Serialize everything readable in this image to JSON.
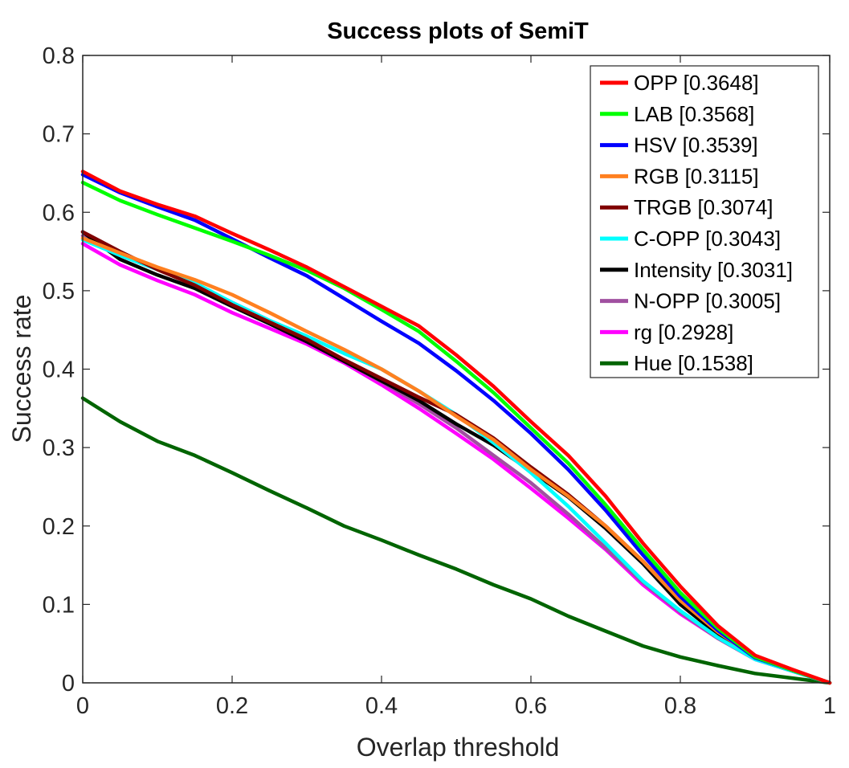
{
  "chart_data": {
    "type": "line",
    "title": "Success plots of SemiT",
    "xlabel": "Overlap threshold",
    "ylabel": "Success rate",
    "xlim": [
      0,
      1
    ],
    "ylim": [
      0,
      0.8
    ],
    "xticks": [
      0,
      0.2,
      0.4,
      0.6,
      0.8,
      1
    ],
    "yticks": [
      0,
      0.1,
      0.2,
      0.3,
      0.4,
      0.5,
      0.6,
      0.7,
      0.8
    ],
    "xtick_labels": [
      "0",
      "0.2",
      "0.4",
      "0.6",
      "0.8",
      "1"
    ],
    "ytick_labels": [
      "0",
      "0.1",
      "0.2",
      "0.3",
      "0.4",
      "0.5",
      "0.6",
      "0.7",
      "0.8"
    ],
    "grid": false,
    "legend_position": "top-right",
    "x": [
      0,
      0.05,
      0.1,
      0.15,
      0.2,
      0.25,
      0.3,
      0.35,
      0.4,
      0.45,
      0.5,
      0.55,
      0.6,
      0.65,
      0.7,
      0.75,
      0.8,
      0.85,
      0.9,
      0.95,
      1
    ],
    "series": [
      {
        "name": "OPP [0.3648]",
        "color": "#ff0000",
        "values": [
          0.652,
          0.627,
          0.61,
          0.595,
          0.573,
          0.552,
          0.53,
          0.505,
          0.48,
          0.455,
          0.418,
          0.378,
          0.333,
          0.29,
          0.238,
          0.178,
          0.123,
          0.073,
          0.035,
          0.017,
          0
        ]
      },
      {
        "name": "LAB [0.3568]",
        "color": "#00ff00",
        "values": [
          0.638,
          0.615,
          0.597,
          0.58,
          0.563,
          0.545,
          0.526,
          0.503,
          0.476,
          0.448,
          0.41,
          0.37,
          0.325,
          0.28,
          0.227,
          0.17,
          0.115,
          0.07,
          0.033,
          0.016,
          0
        ]
      },
      {
        "name": "HSV [0.3539]",
        "color": "#0000ff",
        "values": [
          0.648,
          0.625,
          0.607,
          0.59,
          0.566,
          0.542,
          0.519,
          0.49,
          0.461,
          0.433,
          0.398,
          0.36,
          0.318,
          0.272,
          0.22,
          0.163,
          0.11,
          0.067,
          0.032,
          0.016,
          0
        ]
      },
      {
        "name": "RGB [0.3115]",
        "color": "#ff8020",
        "values": [
          0.567,
          0.548,
          0.53,
          0.514,
          0.495,
          0.472,
          0.448,
          0.425,
          0.4,
          0.372,
          0.34,
          0.31,
          0.272,
          0.238,
          0.2,
          0.155,
          0.105,
          0.065,
          0.033,
          0.016,
          0
        ]
      },
      {
        "name": "TRGB [0.3074]",
        "color": "#800000",
        "values": [
          0.575,
          0.55,
          0.527,
          0.507,
          0.482,
          0.46,
          0.438,
          0.412,
          0.388,
          0.364,
          0.342,
          0.312,
          0.275,
          0.24,
          0.2,
          0.155,
          0.105,
          0.065,
          0.034,
          0.016,
          0
        ]
      },
      {
        "name": "C-OPP [0.3043]",
        "color": "#00ffff",
        "values": [
          0.565,
          0.545,
          0.527,
          0.51,
          0.485,
          0.462,
          0.442,
          0.42,
          0.4,
          0.372,
          0.342,
          0.306,
          0.268,
          0.225,
          0.178,
          0.13,
          0.092,
          0.058,
          0.03,
          0.015,
          0
        ]
      },
      {
        "name": "Intensity [0.3031]",
        "color": "#000000",
        "values": [
          0.575,
          0.54,
          0.52,
          0.503,
          0.48,
          0.458,
          0.435,
          0.41,
          0.385,
          0.36,
          0.33,
          0.303,
          0.27,
          0.237,
          0.197,
          0.152,
          0.1,
          0.062,
          0.033,
          0.016,
          0
        ]
      },
      {
        "name": "N-OPP [0.3005]",
        "color": "#a050a0",
        "values": [
          0.57,
          0.548,
          0.528,
          0.507,
          0.485,
          0.462,
          0.437,
          0.41,
          0.384,
          0.356,
          0.325,
          0.29,
          0.255,
          0.215,
          0.172,
          0.128,
          0.09,
          0.057,
          0.03,
          0.015,
          0
        ]
      },
      {
        "name": "rg [0.2928]",
        "color": "#ff00ff",
        "values": [
          0.56,
          0.533,
          0.513,
          0.495,
          0.472,
          0.452,
          0.432,
          0.408,
          0.38,
          0.35,
          0.318,
          0.285,
          0.248,
          0.21,
          0.17,
          0.125,
          0.088,
          0.057,
          0.03,
          0.015,
          0
        ]
      },
      {
        "name": "Hue [0.1538]",
        "color": "#006400",
        "values": [
          0.363,
          0.333,
          0.308,
          0.29,
          0.268,
          0.245,
          0.223,
          0.2,
          0.182,
          0.163,
          0.145,
          0.125,
          0.107,
          0.085,
          0.066,
          0.047,
          0.033,
          0.022,
          0.012,
          0.006,
          0
        ]
      }
    ]
  }
}
